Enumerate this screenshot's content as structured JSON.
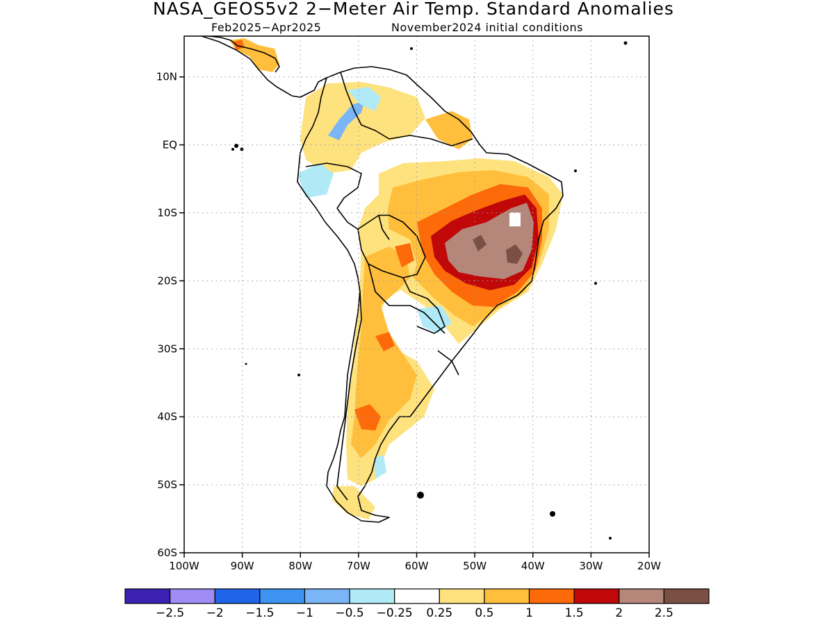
{
  "title": "NASA_GEOS5v2 2−Meter Air Temp. Standard Anomalies",
  "subtitle_left": "Feb2025−Apr2025",
  "subtitle_right": "November2024 initial conditions",
  "map": {
    "type": "filled-contour-map",
    "region": "South America",
    "lon_range": [
      -100,
      -20
    ],
    "lat_range": [
      -60,
      16
    ],
    "grid": true,
    "lat_ticks": [
      {
        "lat": 10,
        "label": "10N"
      },
      {
        "lat": 0,
        "label": "EQ"
      },
      {
        "lat": -10,
        "label": "10S"
      },
      {
        "lat": -20,
        "label": "20S"
      },
      {
        "lat": -30,
        "label": "30S"
      },
      {
        "lat": -40,
        "label": "40S"
      },
      {
        "lat": -50,
        "label": "50S"
      },
      {
        "lat": -60,
        "label": "60S"
      }
    ],
    "lon_ticks": [
      {
        "lon": -100,
        "label": "100W"
      },
      {
        "lon": -90,
        "label": "90W"
      },
      {
        "lon": -80,
        "label": "80W"
      },
      {
        "lon": -70,
        "label": "70W"
      },
      {
        "lon": -60,
        "label": "60W"
      },
      {
        "lon": -50,
        "label": "50W"
      },
      {
        "lon": -40,
        "label": "40W"
      },
      {
        "lon": -30,
        "label": "30W"
      },
      {
        "lon": -20,
        "label": "20W"
      }
    ]
  },
  "colorbar": {
    "colors": [
      "#3b20b4",
      "#a08cf5",
      "#1f64e9",
      "#3c93f0",
      "#7ab6f7",
      "#b0eaf7",
      "#ffffff",
      "#fee27e",
      "#ffbf3c",
      "#fd6a0a",
      "#c00808",
      "#b4877a",
      "#7a5044"
    ],
    "labels": [
      "−2.5",
      "−2",
      "−1.5",
      "−1",
      "−0.5",
      "−0.25",
      "0.25",
      "0.5",
      "1",
      "1.5",
      "2",
      "2.5"
    ],
    "thresholds": [
      -2.5,
      -2,
      -1.5,
      -1,
      -0.5,
      -0.25,
      0.25,
      0.5,
      1,
      1.5,
      2,
      2.5
    ]
  }
}
